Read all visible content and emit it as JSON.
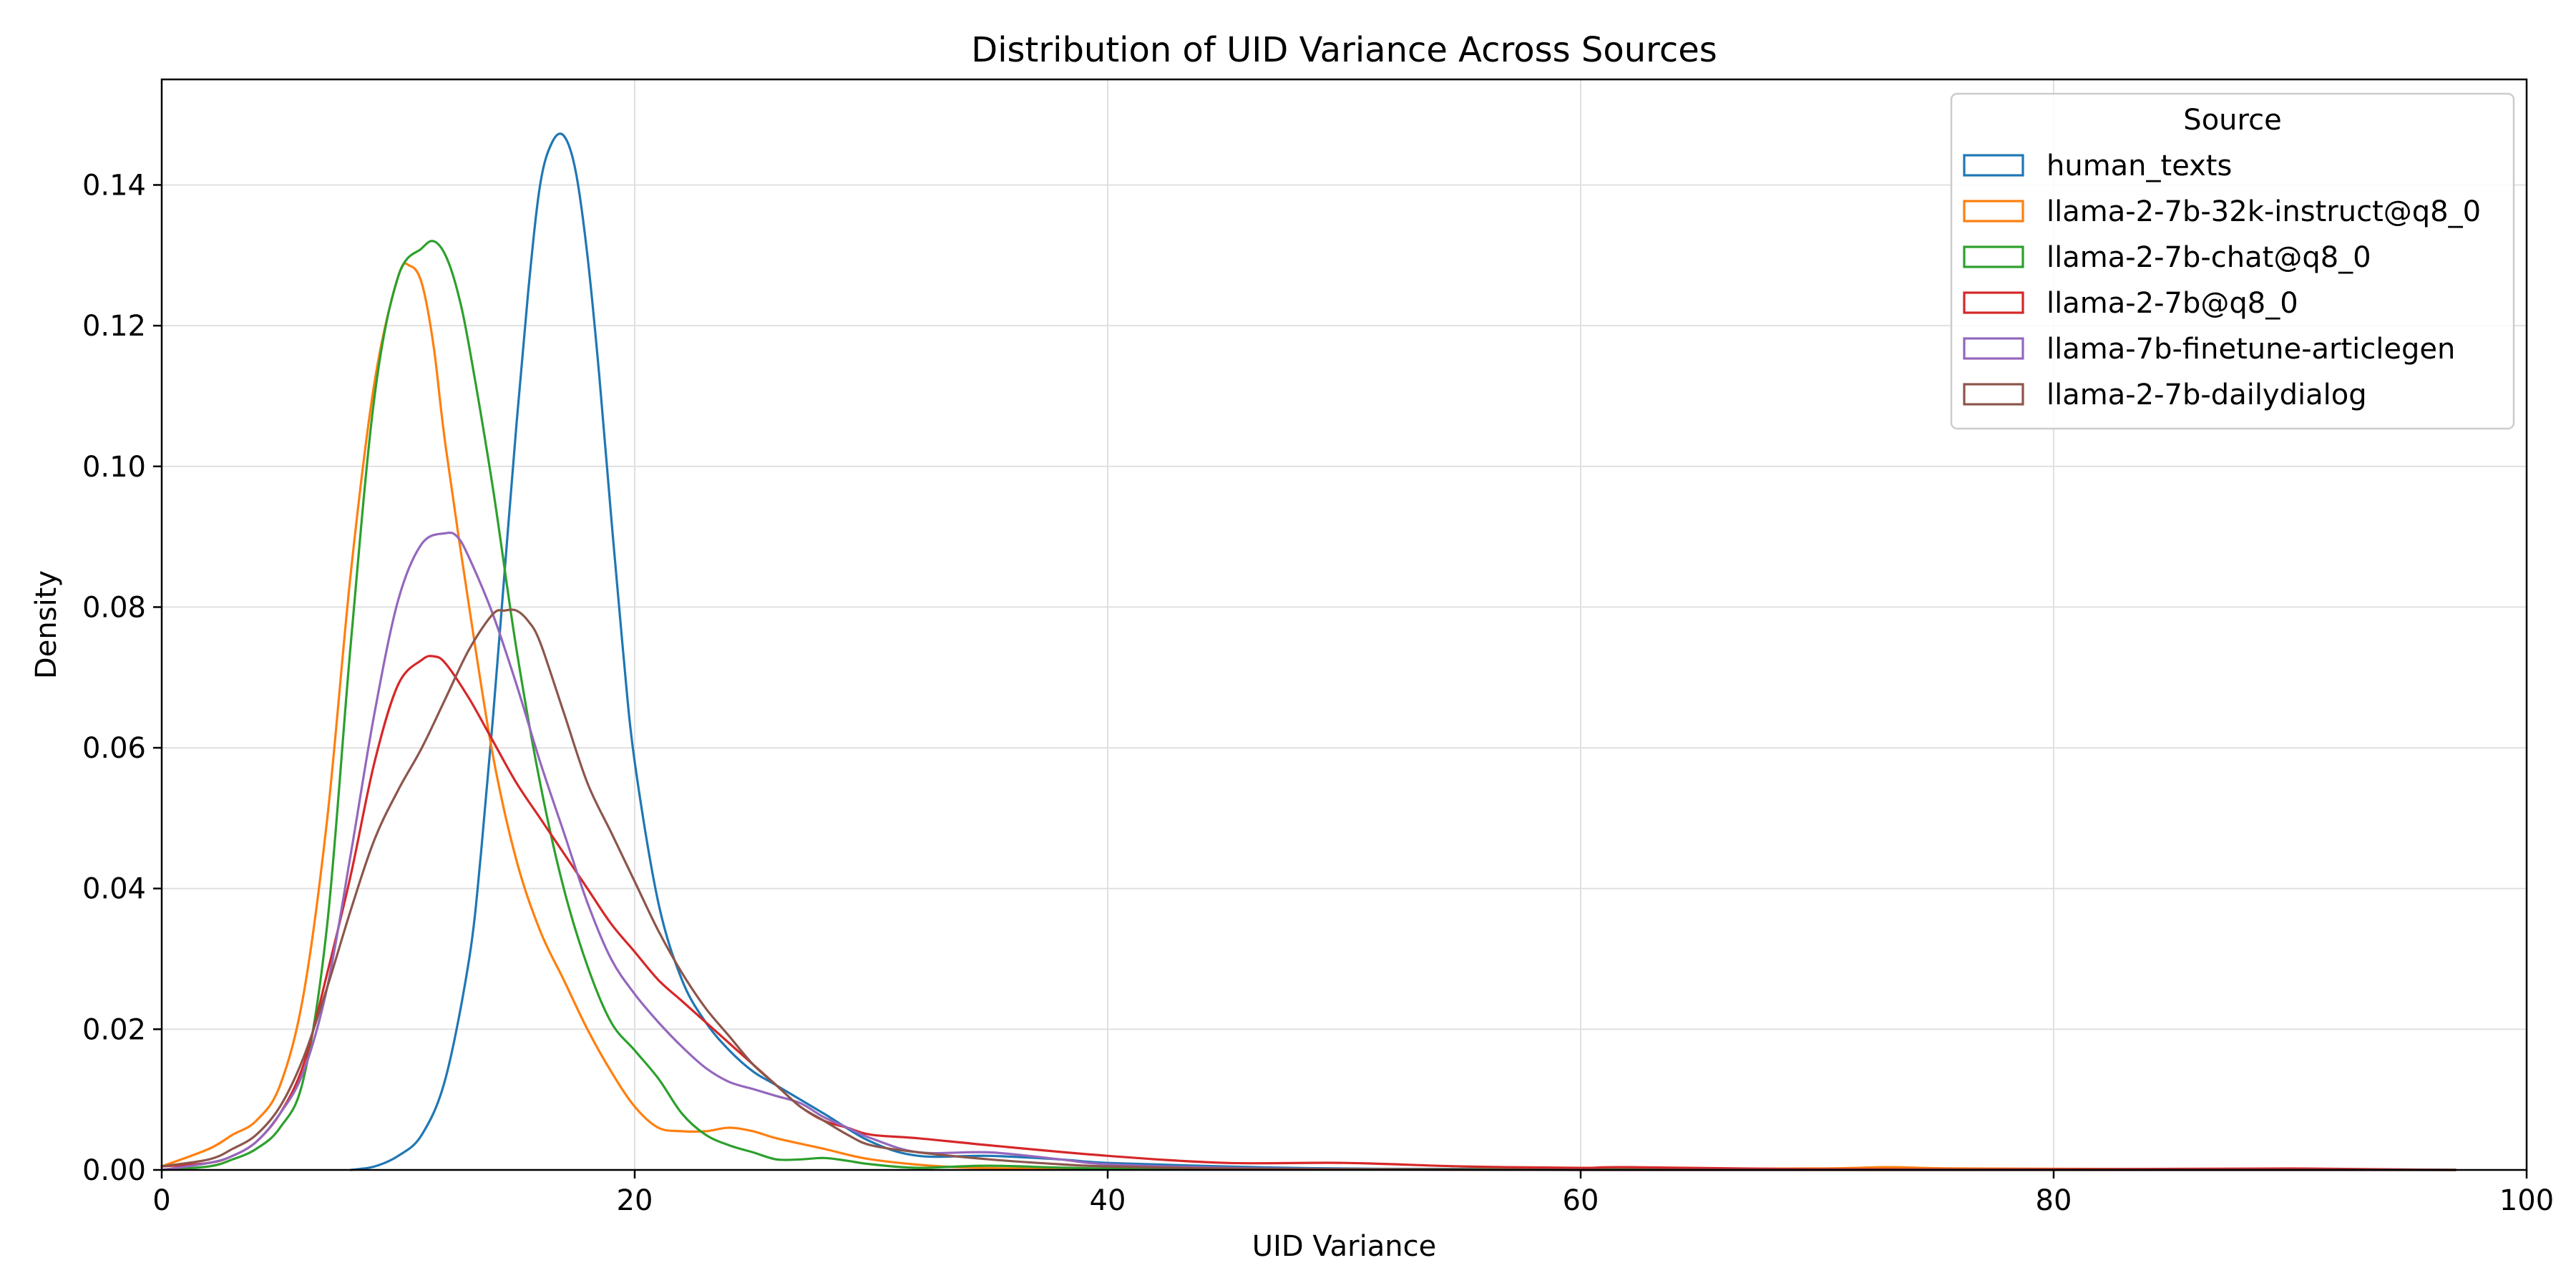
{
  "chart_data": {
    "type": "line",
    "title": "Distribution of UID Variance Across Sources",
    "xlabel": "UID Variance",
    "ylabel": "Density",
    "xlim": [
      0,
      100
    ],
    "ylim": [
      0,
      0.155
    ],
    "xticks": [
      "0",
      "20",
      "40",
      "60",
      "80",
      "100"
    ],
    "xtick_values": [
      0,
      20,
      40,
      60,
      80,
      100
    ],
    "yticks": [
      "0.00",
      "0.02",
      "0.04",
      "0.06",
      "0.08",
      "0.10",
      "0.12",
      "0.14"
    ],
    "ytick_values": [
      0,
      0.02,
      0.04,
      0.06,
      0.08,
      0.1,
      0.12,
      0.14
    ],
    "grid": true,
    "legend": {
      "title": "Source",
      "placement": "top-right"
    },
    "series": [
      {
        "name": "human_texts",
        "color": "#1f77b4",
        "x": [
          8,
          9,
          10,
          11,
          12,
          13,
          13.5,
          14,
          14.5,
          15,
          15.5,
          16,
          16.5,
          17,
          17.5,
          18,
          18.5,
          19,
          19.5,
          20,
          21,
          22,
          23,
          24,
          25,
          26,
          28,
          30,
          32,
          35,
          38,
          40,
          45,
          50,
          60,
          97
        ],
        "y": [
          0.0,
          0.0005,
          0.002,
          0.005,
          0.013,
          0.03,
          0.045,
          0.064,
          0.085,
          0.106,
          0.125,
          0.14,
          0.146,
          0.147,
          0.142,
          0.13,
          0.113,
          0.093,
          0.074,
          0.058,
          0.038,
          0.027,
          0.021,
          0.017,
          0.014,
          0.012,
          0.008,
          0.004,
          0.002,
          0.002,
          0.0015,
          0.001,
          0.0005,
          0.0002,
          0.0001,
          0.0
        ]
      },
      {
        "name": "llama-2-7b-32k-instruct@q8_0",
        "color": "#ff7f0e",
        "x": [
          0,
          2,
          3,
          4,
          5,
          6,
          7,
          8,
          9,
          10,
          10.5,
          11,
          11.5,
          12,
          13,
          14,
          15,
          16,
          17,
          18,
          19,
          20,
          21,
          22,
          23,
          24,
          25,
          26,
          28,
          30,
          33,
          36,
          40,
          50,
          60,
          70,
          73,
          76,
          85,
          97
        ],
        "y": [
          0.0005,
          0.003,
          0.005,
          0.007,
          0.012,
          0.025,
          0.05,
          0.085,
          0.112,
          0.127,
          0.1285,
          0.126,
          0.117,
          0.103,
          0.08,
          0.059,
          0.044,
          0.034,
          0.027,
          0.02,
          0.014,
          0.009,
          0.006,
          0.0055,
          0.0055,
          0.006,
          0.0055,
          0.0045,
          0.003,
          0.0015,
          0.0005,
          0.0002,
          0.0001,
          0.0001,
          0.0001,
          0.0002,
          0.0004,
          0.0002,
          0.0001,
          0.0
        ]
      },
      {
        "name": "llama-2-7b-chat@q8_0",
        "color": "#2ca02c",
        "x": [
          0,
          2,
          3,
          4,
          5,
          6,
          7,
          8,
          9,
          10,
          11,
          11.5,
          12,
          12.5,
          13,
          14,
          15,
          16,
          17,
          18,
          19,
          20,
          21,
          22,
          23,
          24,
          25,
          26,
          27,
          28,
          29,
          30,
          32,
          35,
          40,
          50,
          97
        ],
        "y": [
          0.0,
          0.0005,
          0.0015,
          0.003,
          0.006,
          0.013,
          0.035,
          0.075,
          0.11,
          0.127,
          0.131,
          0.132,
          0.13,
          0.125,
          0.117,
          0.097,
          0.074,
          0.055,
          0.04,
          0.029,
          0.021,
          0.017,
          0.013,
          0.008,
          0.005,
          0.0035,
          0.0025,
          0.0015,
          0.0015,
          0.0017,
          0.0013,
          0.0008,
          0.0003,
          0.0006,
          0.0002,
          0.0001,
          0.0
        ]
      },
      {
        "name": "llama-2-7b@q8_0",
        "color": "#d62728",
        "x": [
          0,
          2,
          3,
          4,
          5,
          6,
          7,
          8,
          9,
          10,
          11,
          11.5,
          12,
          13,
          14,
          15,
          16,
          17,
          18,
          19,
          20,
          21,
          22,
          23,
          24,
          25,
          26,
          27,
          28,
          29,
          30,
          32,
          35,
          40,
          45,
          50,
          55,
          60,
          62,
          70,
          80,
          90,
          97
        ],
        "y": [
          0.0005,
          0.001,
          0.002,
          0.004,
          0.008,
          0.015,
          0.028,
          0.042,
          0.058,
          0.069,
          0.0725,
          0.073,
          0.072,
          0.067,
          0.061,
          0.055,
          0.05,
          0.045,
          0.04,
          0.035,
          0.031,
          0.027,
          0.024,
          0.021,
          0.018,
          0.015,
          0.012,
          0.009,
          0.007,
          0.006,
          0.005,
          0.0045,
          0.0035,
          0.002,
          0.001,
          0.001,
          0.0005,
          0.0003,
          0.0004,
          0.0001,
          0.0001,
          0.0002,
          0.0
        ]
      },
      {
        "name": "llama-7b-finetune-articlegen",
        "color": "#9467bd",
        "x": [
          0,
          2,
          3,
          4,
          5,
          6,
          7,
          8,
          9,
          10,
          11,
          12,
          12.5,
          13,
          14,
          15,
          16,
          17,
          18,
          19,
          20,
          21,
          22,
          23,
          24,
          25,
          26,
          27,
          28,
          29,
          30,
          32,
          35,
          38,
          40,
          45,
          50,
          60,
          97
        ],
        "y": [
          0.0,
          0.001,
          0.002,
          0.004,
          0.008,
          0.014,
          0.026,
          0.045,
          0.065,
          0.081,
          0.089,
          0.0905,
          0.09,
          0.087,
          0.079,
          0.069,
          0.058,
          0.048,
          0.038,
          0.03,
          0.025,
          0.021,
          0.0175,
          0.0145,
          0.0125,
          0.0115,
          0.0105,
          0.0095,
          0.0075,
          0.006,
          0.0045,
          0.0025,
          0.0025,
          0.0015,
          0.0008,
          0.0003,
          0.0001,
          0.0,
          0.0
        ]
      },
      {
        "name": "llama-2-7b-dailydialog",
        "color": "#8c564b",
        "x": [
          0,
          2,
          3,
          4,
          5,
          6,
          7,
          8,
          9,
          10,
          11,
          12,
          13,
          14,
          14.5,
          15,
          15.5,
          16,
          17,
          18,
          19,
          20,
          21,
          22,
          23,
          24,
          25,
          26,
          27,
          28,
          29,
          30,
          32,
          35,
          38,
          40,
          45,
          50,
          60,
          97
        ],
        "y": [
          0.0005,
          0.0015,
          0.003,
          0.005,
          0.009,
          0.016,
          0.026,
          0.037,
          0.047,
          0.054,
          0.06,
          0.067,
          0.074,
          0.079,
          0.0795,
          0.0795,
          0.078,
          0.075,
          0.065,
          0.055,
          0.048,
          0.041,
          0.034,
          0.028,
          0.023,
          0.019,
          0.015,
          0.012,
          0.009,
          0.007,
          0.005,
          0.0035,
          0.0025,
          0.0015,
          0.0008,
          0.0005,
          0.0002,
          0.0001,
          0.0,
          0.0
        ]
      }
    ]
  }
}
